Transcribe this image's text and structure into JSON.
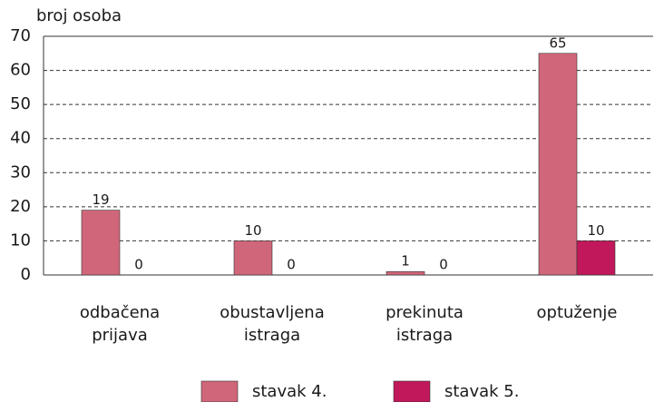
{
  "chart_data": {
    "type": "bar",
    "y_axis_label": "broj osoba",
    "categories": [
      "odbačena prijava",
      "obustavljena istraga",
      "prekinuta istraga",
      "optuženje"
    ],
    "series": [
      {
        "name": "stavak 4.",
        "color": "#d0667a",
        "values": [
          19,
          10,
          1,
          65
        ]
      },
      {
        "name": "stavak 5.",
        "color": "#c0185a",
        "values": [
          0,
          0,
          0,
          10
        ]
      }
    ],
    "ylim": [
      0,
      70
    ],
    "yticks": [
      0,
      10,
      20,
      30,
      40,
      50,
      60,
      70
    ],
    "grid": true,
    "legend": "bottom"
  }
}
